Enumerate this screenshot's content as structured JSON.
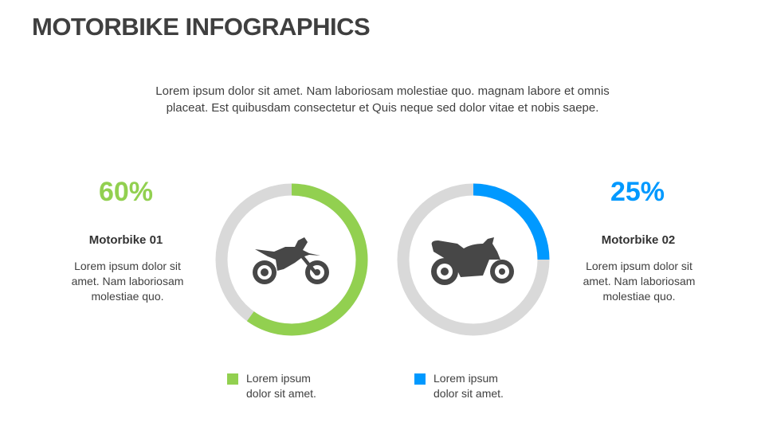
{
  "title": "MOTORBIKE INFOGRAPHICS",
  "intro": [
    "Lorem ipsum dolor sit amet. Nam laboriosam molestiae quo. magnam labore et omnis",
    "placeat. Est quibusdam consectetur et Quis neque sed dolor vitae et nobis saepe."
  ],
  "colors": {
    "green": "#92d050",
    "blue": "#0099ff",
    "track": "#d9d9d9",
    "icon": "#474747"
  },
  "items": [
    {
      "percent_label": "60%",
      "name": "Motorbike 01",
      "desc": [
        "Lorem ipsum dolor sit",
        "amet. Nam laboriosam",
        "molestiae quo."
      ],
      "icon": "dirt-bike-icon",
      "legend": [
        "Lorem ipsum",
        "dolor sit amet."
      ]
    },
    {
      "percent_label": "25%",
      "name": "Motorbike 02",
      "desc": [
        "Lorem ipsum dolor sit",
        "amet. Nam laboriosam",
        "molestiae quo."
      ],
      "icon": "sport-bike-icon",
      "legend": [
        "Lorem ipsum",
        "dolor sit amet."
      ]
    }
  ],
  "chart_data": [
    {
      "type": "pie",
      "style": "donut",
      "values": [
        60,
        40
      ],
      "color": "#92d050"
    },
    {
      "type": "pie",
      "style": "donut",
      "values": [
        25,
        75
      ],
      "color": "#0099ff"
    }
  ]
}
